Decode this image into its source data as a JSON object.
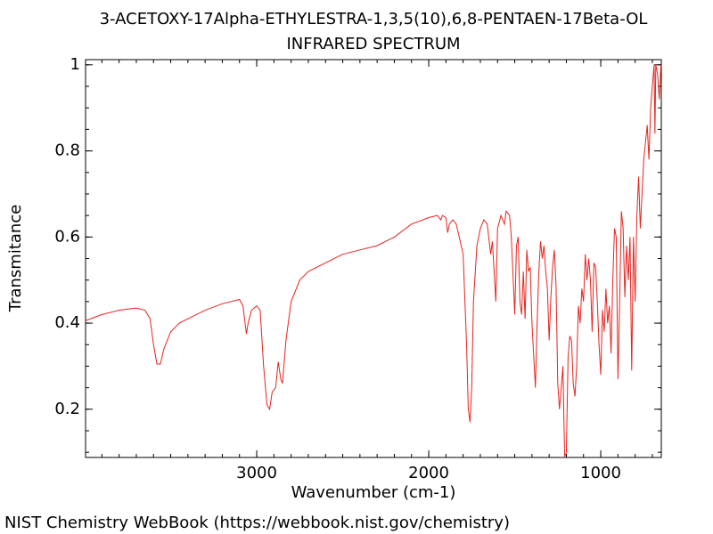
{
  "chart_data": {
    "type": "line",
    "title": "3-ACETOXY-17Alpha-ETHYLESTRA-1,3,5(10),6,8-PENTAEN-17Beta-OL",
    "subtitle": "INFRARED SPECTRUM",
    "xlabel": "Wavenumber (cm-1)",
    "ylabel": "Transmitance",
    "footer": "NIST Chemistry WebBook (https://webbook.nist.gov/chemistry)",
    "xlim": [
      3995,
      648
    ],
    "ylim": [
      0.088,
      1.012
    ],
    "xticks": [
      3000,
      2000,
      1000
    ],
    "yticks": [
      0.2,
      0.4,
      0.6,
      0.8,
      1
    ],
    "x": [
      4000,
      3900,
      3800,
      3700,
      3650,
      3620,
      3600,
      3580,
      3560,
      3540,
      3500,
      3450,
      3400,
      3300,
      3200,
      3100,
      3080,
      3060,
      3050,
      3030,
      3000,
      2980,
      2960,
      2940,
      2925,
      2910,
      2890,
      2875,
      2860,
      2850,
      2830,
      2800,
      2750,
      2700,
      2600,
      2500,
      2400,
      2300,
      2200,
      2100,
      2000,
      1950,
      1930,
      1920,
      1900,
      1890,
      1880,
      1860,
      1840,
      1800,
      1780,
      1770,
      1760,
      1750,
      1740,
      1720,
      1700,
      1680,
      1660,
      1640,
      1630,
      1610,
      1600,
      1580,
      1560,
      1550,
      1530,
      1520,
      1500,
      1490,
      1480,
      1470,
      1460,
      1450,
      1440,
      1430,
      1420,
      1410,
      1400,
      1380,
      1370,
      1360,
      1350,
      1340,
      1330,
      1320,
      1310,
      1300,
      1290,
      1280,
      1270,
      1260,
      1250,
      1240,
      1230,
      1220,
      1210,
      1200,
      1190,
      1180,
      1170,
      1160,
      1150,
      1140,
      1130,
      1120,
      1110,
      1100,
      1090,
      1080,
      1070,
      1060,
      1050,
      1040,
      1030,
      1020,
      1010,
      1000,
      990,
      980,
      970,
      960,
      950,
      940,
      930,
      920,
      910,
      900,
      890,
      880,
      870,
      860,
      850,
      840,
      830,
      820,
      810,
      800,
      790,
      780,
      770,
      760,
      750,
      740,
      730,
      720,
      710,
      700,
      690,
      685,
      680,
      670,
      660,
      650
    ],
    "series": [
      {
        "name": "Transmitance",
        "color": "#e8231e",
        "values": [
          0.405,
          0.42,
          0.43,
          0.435,
          0.43,
          0.41,
          0.35,
          0.305,
          0.305,
          0.34,
          0.38,
          0.4,
          0.41,
          0.43,
          0.445,
          0.455,
          0.44,
          0.375,
          0.4,
          0.43,
          0.44,
          0.43,
          0.3,
          0.21,
          0.2,
          0.24,
          0.25,
          0.31,
          0.27,
          0.26,
          0.36,
          0.45,
          0.5,
          0.52,
          0.54,
          0.56,
          0.57,
          0.58,
          0.6,
          0.63,
          0.645,
          0.65,
          0.64,
          0.65,
          0.645,
          0.61,
          0.63,
          0.64,
          0.63,
          0.56,
          0.35,
          0.2,
          0.17,
          0.25,
          0.45,
          0.58,
          0.62,
          0.64,
          0.63,
          0.56,
          0.59,
          0.45,
          0.62,
          0.65,
          0.63,
          0.66,
          0.65,
          0.6,
          0.42,
          0.58,
          0.6,
          0.45,
          0.42,
          0.52,
          0.41,
          0.57,
          0.52,
          0.53,
          0.4,
          0.25,
          0.4,
          0.52,
          0.59,
          0.55,
          0.58,
          0.52,
          0.48,
          0.36,
          0.46,
          0.53,
          0.57,
          0.49,
          0.26,
          0.2,
          0.25,
          0.3,
          0.09,
          0.1,
          0.32,
          0.37,
          0.36,
          0.26,
          0.23,
          0.3,
          0.44,
          0.4,
          0.48,
          0.45,
          0.56,
          0.5,
          0.55,
          0.5,
          0.38,
          0.54,
          0.53,
          0.45,
          0.35,
          0.28,
          0.43,
          0.38,
          0.48,
          0.4,
          0.44,
          0.33,
          0.5,
          0.62,
          0.6,
          0.27,
          0.45,
          0.66,
          0.62,
          0.46,
          0.58,
          0.5,
          0.6,
          0.29,
          0.6,
          0.45,
          0.65,
          0.74,
          0.62,
          0.7,
          0.78,
          0.82,
          0.86,
          0.78,
          0.9,
          0.95,
          1.0,
          0.84,
          1.0,
          0.98,
          0.92,
          1.0
        ]
      }
    ]
  }
}
